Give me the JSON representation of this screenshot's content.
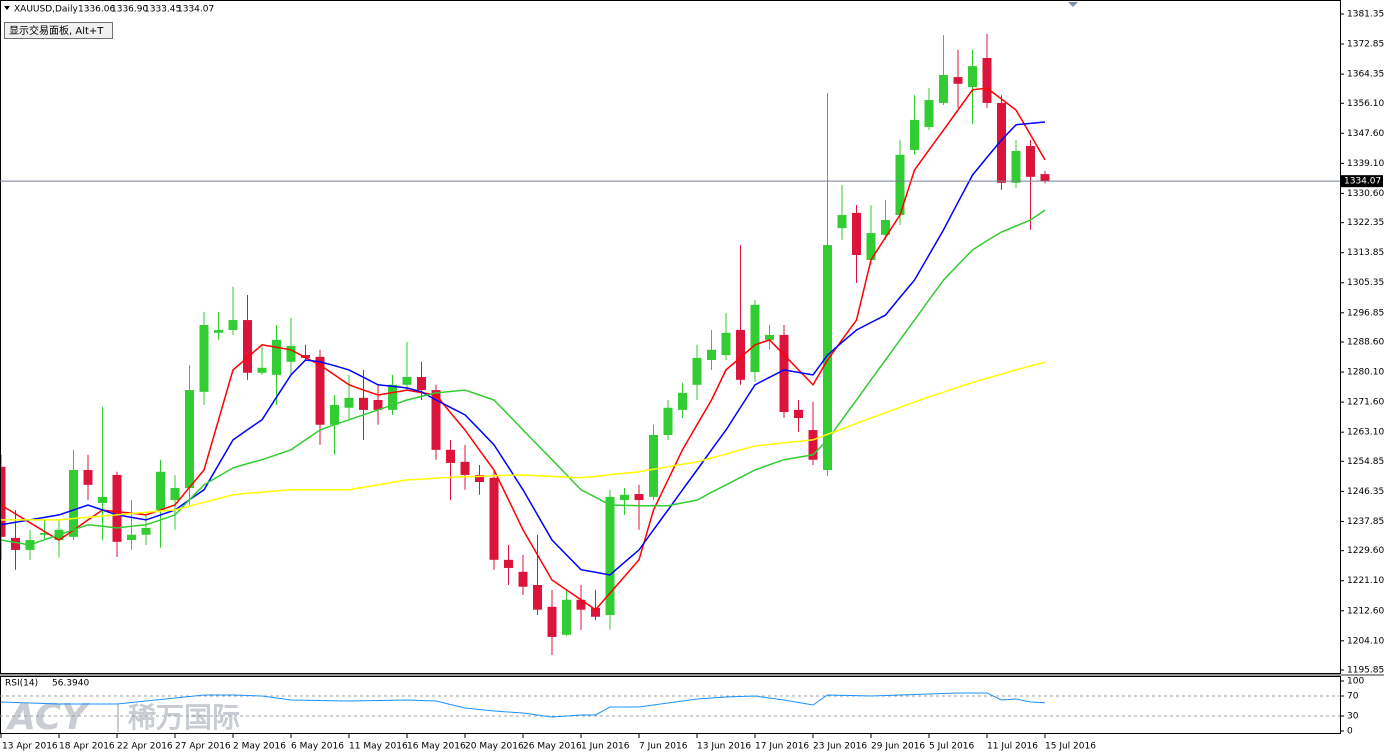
{
  "chart_data": {
    "type": "candlestick",
    "header": {
      "symbol": "XAUUSD,Daily",
      "ohlc": [
        "1336.06",
        "1336.90",
        "1333.45",
        "1334.07"
      ]
    },
    "button": "显示交易面板, Alt+T",
    "watermark": {
      "brand": "ACY",
      "name": "稀万国际"
    },
    "categories": [
      "13 Apr 2016",
      null,
      null,
      null,
      "18 Apr 2016",
      null,
      null,
      null,
      "22 Apr 2016",
      null,
      null,
      null,
      "27 Apr 2016",
      null,
      null,
      null,
      "2 May 2016",
      null,
      null,
      null,
      "6 May 2016",
      null,
      null,
      null,
      "11 May 2016",
      null,
      null,
      null,
      "16 May 2016",
      null,
      null,
      null,
      "20 May 2016",
      null,
      null,
      null,
      "26 May 2016",
      null,
      null,
      null,
      "1 Jun 2016",
      null,
      null,
      null,
      "7 Jun 2016",
      null,
      null,
      null,
      "13 Jun 2016",
      null,
      null,
      null,
      "17 Jun 2016",
      null,
      null,
      null,
      "23 Jun 2016",
      null,
      null,
      null,
      "29 Jun 2016",
      null,
      null,
      null,
      "5 Jul 2016",
      null,
      null,
      null,
      "11 Jul 2016",
      null,
      null,
      null,
      "15 Jul 2016"
    ],
    "open": [
      1253.3,
      1233.2,
      1229.8,
      1234.1,
      1232.6,
      1233.5,
      1252.4,
      1243.1,
      1251.0,
      1232.6,
      1234.1,
      1241.1,
      1243.9,
      1247.3,
      1274.5,
      1291.2,
      1292.0,
      1294.8,
      1279.9,
      1279.3,
      1283.0,
      1284.9,
      1284.4,
      1265.2,
      1270.0,
      1272.8,
      1272.2,
      1269.4,
      1276.5,
      1278.7,
      1275.0,
      1258.1,
      1254.7,
      1251.0,
      1250.2,
      1227.0,
      1223.6,
      1219.9,
      1213.7,
      1205.8,
      1215.7,
      1213.4,
      1211.4,
      1243.9,
      1245.6,
      1244.8,
      1262.3,
      1269.4,
      1276.5,
      1283.5,
      1284.9,
      1292.0,
      1280.1,
      1289.2,
      1290.6,
      1269.4,
      1263.7,
      1252.4,
      1320.8,
      1325.1,
      1311.8,
      1318.9,
      1324.5,
      1342.9,
      1349.4,
      1356.2,
      1363.5,
      1360.7,
      1368.9,
      1356.2,
      1333.6,
      1344.0,
      1336.06
    ],
    "high": [
      1256.7,
      1241.1,
      1235.5,
      1238.3,
      1238.3,
      1258.1,
      1256.7,
      1270.2,
      1251.9,
      1243.9,
      1239.7,
      1255.3,
      1251.0,
      1282.1,
      1297.1,
      1297.1,
      1304.2,
      1301.9,
      1287.8,
      1293.4,
      1295.4,
      1287.8,
      1286.4,
      1273.6,
      1279.3,
      1280.7,
      1276.5,
      1279.3,
      1288.6,
      1283.0,
      1276.5,
      1260.9,
      1259.5,
      1253.8,
      1252.4,
      1231.2,
      1228.4,
      1234.1,
      1218.5,
      1218.5,
      1219.9,
      1218.5,
      1246.8,
      1247.3,
      1248.2,
      1265.2,
      1272.2,
      1277.0,
      1287.8,
      1292.0,
      1296.8,
      1316.0,
      1300.5,
      1293.4,
      1293.4,
      1272.2,
      1271.7,
      1359.0,
      1333.0,
      1327.3,
      1327.3,
      1328.8,
      1345.7,
      1358.4,
      1360.4,
      1375.4,
      1371.2,
      1371.2,
      1375.7,
      1358.4,
      1345.7,
      1345.7,
      1336.9
    ],
    "low": [
      1227.0,
      1224.2,
      1227.0,
      1232.6,
      1227.6,
      1232.6,
      1243.9,
      1232.6,
      1227.8,
      1229.8,
      1231.2,
      1230.4,
      1235.5,
      1242.5,
      1270.8,
      1289.2,
      1290.6,
      1277.9,
      1279.3,
      1270.8,
      1279.3,
      1283.5,
      1259.5,
      1256.7,
      1266.6,
      1260.9,
      1265.2,
      1268.0,
      1275.0,
      1272.2,
      1255.3,
      1243.9,
      1246.8,
      1245.4,
      1224.2,
      1219.9,
      1217.1,
      1211.4,
      1200.1,
      1205.5,
      1207.2,
      1210.0,
      1207.2,
      1239.7,
      1235.5,
      1243.9,
      1260.9,
      1267.1,
      1272.2,
      1280.7,
      1283.5,
      1276.5,
      1277.3,
      1286.4,
      1267.1,
      1263.2,
      1253.8,
      1250.7,
      1317.5,
      1305.3,
      1310.4,
      1317.5,
      1321.7,
      1341.5,
      1348.5,
      1355.6,
      1354.8,
      1350.2,
      1354.8,
      1331.6,
      1332.1,
      1320.3,
      1333.45
    ],
    "close": [
      1233.5,
      1229.8,
      1232.6,
      1234.6,
      1235.5,
      1252.4,
      1248.2,
      1244.8,
      1232.1,
      1234.1,
      1236.0,
      1251.9,
      1247.3,
      1275.0,
      1293.4,
      1292.0,
      1294.8,
      1279.9,
      1281.3,
      1289.2,
      1287.5,
      1284.1,
      1265.2,
      1270.8,
      1272.8,
      1269.4,
      1269.4,
      1276.5,
      1278.7,
      1275.0,
      1258.1,
      1254.4,
      1251.0,
      1249.0,
      1227.0,
      1224.7,
      1219.4,
      1212.9,
      1205.2,
      1215.7,
      1212.9,
      1210.9,
      1244.8,
      1245.4,
      1243.9,
      1262.3,
      1270.0,
      1274.2,
      1284.1,
      1286.4,
      1291.2,
      1277.9,
      1299.1,
      1290.6,
      1268.8,
      1267.1,
      1255.3,
      1316.0,
      1324.5,
      1313.2,
      1319.4,
      1323.1,
      1341.5,
      1351.4,
      1357.0,
      1364.1,
      1361.6,
      1366.6,
      1356.2,
      1333.6,
      1342.6,
      1335.3,
      1334.07
    ],
    "up_color": "#32cd32",
    "down_color": "#dc143c",
    "overlays": [
      {
        "color": "#ff0000",
        "values": [
          1242.5,
          1240.0,
          1237.5,
          1235.0,
          1232.6,
          1235.4,
          1238.3,
          1241.1,
          1240.6,
          1240.2,
          1239.7,
          1241.1,
          1242.5,
          1247.5,
          1252.4,
          1266.5,
          1280.7,
          1284.2,
          1287.8,
          1287.1,
          1286.4,
          1284.2,
          1282.1,
          1279.3,
          1276.5,
          1275.0,
          1273.6,
          1274.3,
          1275.0,
          1274.3,
          1273.6,
          1268.6,
          1263.7,
          1258.0,
          1252.4,
          1244.0,
          1235.5,
          1228.4,
          1221.3,
          1218.5,
          1215.7,
          1212.9,
          1217.6,
          1222.3,
          1227.0,
          1241.1,
          1249.6,
          1258.1,
          1265.2,
          1272.2,
          1280.7,
          1284.2,
          1287.8,
          1289.2,
          1285.0,
          1280.7,
          1276.5,
          1283.5,
          1289.2,
          1294.8,
          1311.8,
          1318.2,
          1324.5,
          1337.2,
          1342.9,
          1348.5,
          1354.2,
          1359.9,
          1360.4,
          1357.3,
          1354.2,
          1347.2,
          1340.1
        ]
      },
      {
        "color": "#0000ff",
        "values": [
          1236.9,
          1237.6,
          1238.3,
          1239.0,
          1239.7,
          1241.1,
          1242.5,
          1241.1,
          1239.7,
          1239.0,
          1238.3,
          1239.7,
          1241.1,
          1244.0,
          1246.8,
          1253.9,
          1260.9,
          1263.8,
          1266.6,
          1273.0,
          1279.3,
          1283.5,
          1283.0,
          1281.9,
          1280.7,
          1278.6,
          1276.5,
          1276.1,
          1275.6,
          1274.5,
          1272.2,
          1270.1,
          1268.0,
          1263.8,
          1259.5,
          1253.2,
          1246.8,
          1239.7,
          1232.6,
          1228.4,
          1224.2,
          1223.5,
          1222.7,
          1226.3,
          1229.8,
          1235.5,
          1241.1,
          1246.8,
          1252.4,
          1258.1,
          1263.7,
          1270.1,
          1276.5,
          1278.6,
          1280.7,
          1280.0,
          1279.3,
          1284.9,
          1288.5,
          1292.0,
          1294.1,
          1296.2,
          1301.2,
          1306.1,
          1313.2,
          1320.3,
          1328.1,
          1335.8,
          1340.8,
          1345.7,
          1350.0,
          1350.4,
          1350.8
        ]
      },
      {
        "color": "#32cd32",
        "values": [
          1232.6,
          1231.9,
          1231.2,
          1232.7,
          1234.1,
          1235.5,
          1236.9,
          1236.5,
          1236.0,
          1236.5,
          1236.9,
          1238.3,
          1239.7,
          1244.0,
          1248.2,
          1250.6,
          1253.0,
          1254.2,
          1255.3,
          1256.7,
          1258.1,
          1260.9,
          1263.7,
          1265.2,
          1266.6,
          1268.0,
          1269.4,
          1270.8,
          1272.2,
          1273.2,
          1274.2,
          1274.6,
          1275.0,
          1273.6,
          1272.2,
          1268.0,
          1263.7,
          1259.5,
          1255.3,
          1251.1,
          1246.8,
          1244.7,
          1242.5,
          1242.4,
          1242.3,
          1242.3,
          1242.3,
          1243.1,
          1243.9,
          1246.1,
          1248.2,
          1250.3,
          1252.4,
          1253.9,
          1255.3,
          1256.0,
          1256.7,
          1260.9,
          1266.6,
          1272.2,
          1277.9,
          1283.5,
          1289.2,
          1294.8,
          1300.5,
          1306.1,
          1310.4,
          1314.6,
          1317.2,
          1319.7,
          1321.4,
          1323.1,
          1325.9
        ]
      },
      {
        "color": "#ffff00",
        "values": [
          1238.3,
          1238.3,
          1238.3,
          1238.3,
          1238.3,
          1238.7,
          1239.0,
          1239.4,
          1239.7,
          1240.1,
          1240.4,
          1240.8,
          1241.1,
          1242.2,
          1243.3,
          1244.3,
          1245.4,
          1245.8,
          1246.1,
          1246.5,
          1246.8,
          1246.8,
          1246.8,
          1246.8,
          1246.8,
          1247.5,
          1248.2,
          1248.9,
          1249.6,
          1249.8,
          1250.1,
          1250.3,
          1250.5,
          1250.6,
          1250.8,
          1250.9,
          1251.0,
          1250.8,
          1250.6,
          1250.4,
          1250.2,
          1250.6,
          1251.1,
          1251.5,
          1251.9,
          1252.6,
          1253.3,
          1254.0,
          1254.7,
          1255.8,
          1256.9,
          1258.1,
          1259.2,
          1259.6,
          1260.1,
          1260.5,
          1260.9,
          1262.5,
          1264.0,
          1265.6,
          1267.1,
          1268.6,
          1270.1,
          1271.6,
          1273.1,
          1274.4,
          1275.8,
          1277.1,
          1278.4,
          1279.5,
          1280.7,
          1281.8,
          1282.9
        ]
      }
    ],
    "ylim": [
      1195.0,
      1385.3
    ],
    "yticks": [
      1381.35,
      1372.85,
      1364.35,
      {
        "value": 1356.1,
        "label": "1356.10"
      },
      {
        "value": 1347.6,
        "label": "1347.60"
      },
      {
        "value": 1339.1,
        "label": "1339.10"
      },
      {
        "value": 1330.6,
        "label": "1330.60"
      },
      1322.35,
      1313.85,
      1305.35,
      1296.85,
      {
        "value": 1288.6,
        "label": "1288.60"
      },
      {
        "value": 1280.1,
        "label": "1280.10"
      },
      {
        "value": 1271.6,
        "label": "1271.60"
      },
      {
        "value": 1263.1,
        "label": "1263.10"
      },
      1254.85,
      1246.35,
      1237.85,
      {
        "value": 1229.6,
        "label": "1229.60"
      },
      {
        "value": 1221.1,
        "label": "1221.10"
      },
      {
        "value": 1212.6,
        "label": "1212.60"
      },
      {
        "value": 1204.1,
        "label": "1204.10"
      },
      1195.85
    ],
    "rsi": {
      "label": "RSI(14)",
      "value_label": "56.3940",
      "color": "#1e90ff",
      "values": [
        58,
        57,
        56,
        55,
        54,
        54,
        54,
        54,
        54,
        57,
        60,
        63,
        66,
        69,
        72,
        72,
        72,
        71,
        70,
        66,
        62,
        61.5,
        61,
        60.5,
        60,
        60.5,
        61,
        61.5,
        62,
        61,
        60,
        53,
        46,
        43,
        40,
        38,
        36,
        32,
        28,
        30,
        32,
        32,
        48,
        48,
        48,
        52,
        56,
        60,
        64,
        66,
        68,
        69,
        70,
        66,
        62,
        57,
        52,
        72,
        71.3,
        70.7,
        70,
        71,
        72,
        73,
        74,
        75,
        76,
        76,
        76,
        62,
        64,
        58,
        56.394
      ],
      "ylim": [
        -4,
        108
      ],
      "yticks": [
        100,
        70,
        30,
        0
      ],
      "levels": [
        70,
        30
      ]
    }
  }
}
